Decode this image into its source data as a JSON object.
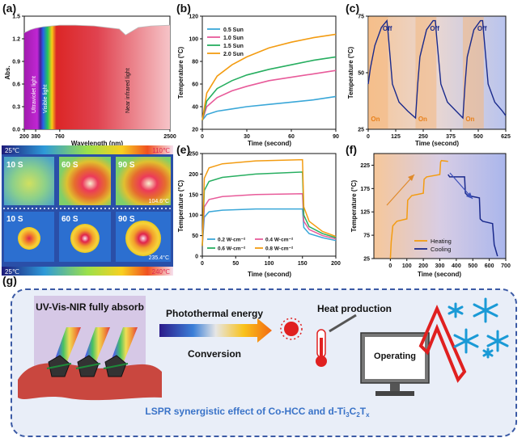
{
  "panel_labels": [
    "(a)",
    "(b)",
    "(c)",
    "(d)",
    "(e)",
    "(f)",
    "(g)"
  ],
  "colors": {
    "orange": "#f39c12",
    "green": "#27ae60",
    "pink": "#e85b9a",
    "cyan": "#3aa7d8",
    "navy": "#1a2a8c",
    "frame": "#3b5aa5"
  },
  "chart_data": [
    {
      "id": "a",
      "type": "area",
      "xlabel": "Wavelength (nm)",
      "ylabel": "Abs.",
      "ylim": [
        0,
        1.5
      ],
      "xlim": [
        200,
        2500
      ],
      "x_ticks": [
        "200",
        "380",
        "760",
        "2500"
      ],
      "y_ticks": [
        "0.0",
        "0.3",
        "0.6",
        "0.9",
        "1.2",
        "1.5"
      ],
      "regions": [
        "Ultraviolet light",
        "Visible light",
        "Near infrared light"
      ],
      "series": [
        {
          "x": [
            200,
            300,
            380,
            500,
            760,
            1000,
            1300,
            1500,
            1700,
            1800,
            2000,
            2200,
            2500
          ],
          "values": [
            1.28,
            1.32,
            1.34,
            1.36,
            1.38,
            1.38,
            1.37,
            1.35,
            1.33,
            1.25,
            1.35,
            1.37,
            1.38
          ]
        }
      ]
    },
    {
      "id": "b",
      "type": "line",
      "xlabel": "Time (second)",
      "ylabel": "Temperature (°C)",
      "xlim": [
        0,
        90
      ],
      "ylim": [
        20,
        120
      ],
      "x_ticks": [
        "0",
        "30",
        "60",
        "90"
      ],
      "y_ticks": [
        "20",
        "40",
        "60",
        "80",
        "100",
        "120"
      ],
      "x": [
        0,
        3,
        10,
        20,
        30,
        45,
        60,
        75,
        90
      ],
      "series": [
        {
          "name": "0.5 Sun",
          "values": [
            28,
            33,
            36,
            38,
            40,
            42,
            44,
            46,
            49
          ]
        },
        {
          "name": "1.0 Sun",
          "values": [
            28,
            40,
            48,
            54,
            58,
            63,
            66,
            69,
            72
          ]
        },
        {
          "name": "1.5 Sun",
          "values": [
            28,
            45,
            56,
            63,
            68,
            73,
            77,
            81,
            84
          ]
        },
        {
          "name": "2.0 Sun",
          "values": [
            28,
            52,
            67,
            77,
            84,
            92,
            97,
            101,
            104
          ]
        }
      ]
    },
    {
      "id": "c",
      "type": "line",
      "xlabel": "Time (second)",
      "ylabel": "Temperature (°C)",
      "xlim": [
        0,
        625
      ],
      "ylim": [
        25,
        75
      ],
      "x_ticks": [
        "0",
        "125",
        "250",
        "375",
        "500",
        "625"
      ],
      "y_ticks": [
        "25",
        "50",
        "75"
      ],
      "on_label": "On",
      "off_label": "Off",
      "x": [
        0,
        10,
        30,
        60,
        85,
        90,
        110,
        140,
        180,
        215,
        225,
        235,
        265,
        295,
        305,
        310,
        330,
        360,
        400,
        430,
        440,
        450,
        480,
        510,
        520,
        525,
        545,
        575,
        610,
        625
      ],
      "series": [
        {
          "values": [
            45,
            52,
            62,
            70,
            73,
            68,
            45,
            37,
            33,
            30,
            45,
            57,
            69,
            73,
            73,
            67,
            45,
            37,
            33,
            30,
            45,
            57,
            69,
            73,
            73,
            67,
            45,
            37,
            33,
            31
          ]
        }
      ]
    },
    {
      "id": "e",
      "type": "line",
      "xlabel": "Time (second)",
      "ylabel": "Temperature (°C)",
      "xlim": [
        0,
        200
      ],
      "ylim": [
        0,
        250
      ],
      "x_ticks": [
        "0",
        "50",
        "100",
        "150",
        "200"
      ],
      "y_ticks": [
        "0",
        "50",
        "100",
        "150",
        "200",
        "250"
      ],
      "x": [
        0,
        3,
        10,
        30,
        80,
        150,
        152,
        160,
        180,
        200
      ],
      "series": [
        {
          "name": "0.2 W·cm⁻²",
          "values": [
            25,
            95,
            108,
            112,
            115,
            115,
            70,
            55,
            45,
            38
          ]
        },
        {
          "name": "0.4 W·cm⁻²",
          "values": [
            25,
            120,
            138,
            145,
            150,
            152,
            85,
            65,
            50,
            42
          ]
        },
        {
          "name": "0.6 W·cm⁻²",
          "values": [
            25,
            160,
            182,
            192,
            200,
            205,
            100,
            72,
            55,
            45
          ]
        },
        {
          "name": "0.8 W·cm⁻²",
          "values": [
            25,
            190,
            215,
            225,
            232,
            235,
            120,
            85,
            60,
            48
          ]
        }
      ]
    },
    {
      "id": "f",
      "type": "line",
      "xlabel": "Time (second)",
      "ylabel": "Temperature (°C)",
      "xlim": [
        -100,
        700
      ],
      "ylim": [
        25,
        250
      ],
      "x_ticks": [
        "0",
        "100",
        "200",
        "300",
        "400",
        "500",
        "600",
        "700"
      ],
      "y_ticks": [
        "25",
        "75",
        "125",
        "175",
        "225"
      ],
      "series": [
        {
          "name": "Heating",
          "x": [
            0,
            5,
            15,
            40,
            100,
            105,
            130,
            200,
            205,
            220,
            300,
            305,
            310,
            350
          ],
          "values": [
            25,
            60,
            95,
            105,
            110,
            150,
            160,
            165,
            195,
            200,
            205,
            232,
            235,
            233
          ]
        },
        {
          "name": "Cooling",
          "x": [
            350,
            360,
            380,
            450,
            455,
            470,
            540,
            545,
            560,
            620,
            630,
            650
          ],
          "values": [
            205,
            200,
            200,
            200,
            165,
            160,
            155,
            110,
            105,
            100,
            55,
            30
          ]
        }
      ]
    }
  ],
  "thermal": {
    "scale_low_top": "25℃",
    "scale_high_top": "110℃",
    "scale_low_bottom": "25℃",
    "scale_high_bottom": "240℃",
    "top_times": [
      "10 S",
      "60 S",
      "90 S"
    ],
    "bottom_times": [
      "10 S",
      "60 S",
      "90 S"
    ],
    "top_temp": "104.6°C",
    "bottom_temp": "235.4°C"
  },
  "schematic": {
    "absorb_title": "UV-Vis-NIR fully absorb",
    "arrow_top": "Photothermal energy",
    "arrow_bottom": "Conversion",
    "heat": "Heat production",
    "operating": "Operating",
    "footer_main": "LSPR synergistic effect of Co-HCC and d-Ti",
    "footer_sub1": "3",
    "footer_mid": "C",
    "footer_sub2": "2",
    "footer_end": "T",
    "footer_sub3": "x"
  }
}
